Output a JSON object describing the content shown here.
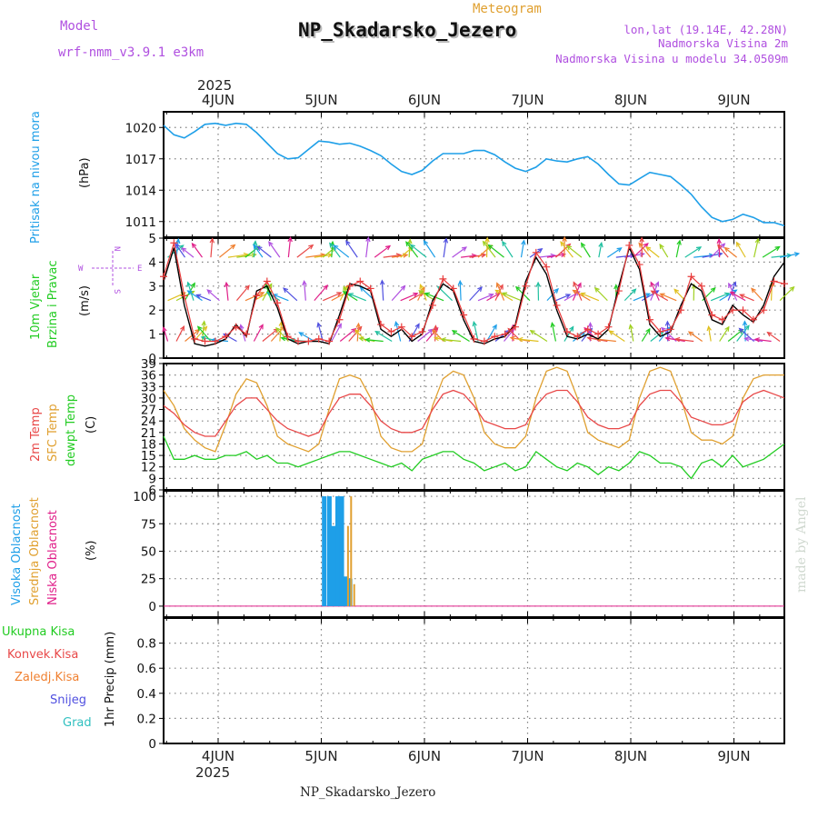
{
  "header": {
    "model_label": "Model",
    "model_name": "wrf-nmm_v3.9.1 e3km",
    "meteogram_label": "Meteogram",
    "station_title": "NP_Skadarsko_Jezero",
    "lonlat": "lon,lat (19.14E, 42.28N)",
    "elevation": "Nadmorska Visina 2m",
    "model_elevation": "Nadmorska Visina u modelu 34.0509m",
    "footer_title": "NP_Skadarsko_Jezero",
    "watermark": "made by Angel"
  },
  "time_axis": {
    "year": "2025",
    "days": [
      "4JUN",
      "5JUN",
      "6JUN",
      "7JUN",
      "8JUN",
      "9JUN"
    ],
    "x_range_days": [
      0,
      6.0
    ]
  },
  "colors": {
    "pressure": "#1e9fe8",
    "wind_speed": "#000000",
    "wind_gust": "#e83c3c",
    "temp2m": "#e84848",
    "sfc_temp": "#e0a030",
    "dewpt": "#22cc22",
    "high_cloud": "#1e9fe8",
    "mid_cloud": "#e0a030",
    "low_cloud": "#e0208a",
    "total_precip": "#22cc22",
    "conv_precip": "#e84848",
    "frozen_precip": "#f08030",
    "snow": "#5050e0",
    "graupel": "#30c0c0",
    "label_purple": "#b050e0",
    "frame": "#000000",
    "grid": "#808080"
  },
  "panel_labels": {
    "pressure": {
      "line1": "Pritisak na nivou mora",
      "unit": "(hPa)"
    },
    "wind": {
      "line1": "10m Vjetar",
      "line2": "Brzina i Pravac",
      "unit": "(m/s)",
      "compass_w": "W",
      "compass_e": "E",
      "compass_n": "N",
      "compass_s": "S"
    },
    "temp": {
      "line1": "2m Temp",
      "line2": "SFC Temp",
      "line3": "dewpt Temp",
      "unit": "(C)"
    },
    "cloud": {
      "line1": "Visoka Oblacnost",
      "line2": "Srednja Oblacnost",
      "line3": "Niska Oblacnost",
      "unit": "(%)"
    },
    "precip": {
      "line1": "Ukupna Kisa",
      "line2": "Konvek.Kisa",
      "line3": "Zaledj.Kisa",
      "line4": "Snijeg",
      "line5": "Grad",
      "unit": "1hr Precip (mm)"
    }
  },
  "chart_data": [
    {
      "id": "pressure",
      "type": "line",
      "ylabel": "(hPa)",
      "ylim": [
        1009.5,
        1021.5
      ],
      "yticks": [
        1011,
        1014,
        1017,
        1020
      ],
      "x_days": [
        0.0,
        0.1,
        0.2,
        0.3,
        0.4,
        0.5,
        0.6,
        0.7,
        0.8,
        0.9,
        1.0,
        1.1,
        1.2,
        1.3,
        1.4,
        1.5,
        1.6,
        1.7,
        1.8,
        1.9,
        2.0,
        2.1,
        2.2,
        2.3,
        2.4,
        2.5,
        2.6,
        2.7,
        2.8,
        2.9,
        3.0,
        3.1,
        3.2,
        3.3,
        3.4,
        3.5,
        3.6,
        3.7,
        3.8,
        3.9,
        4.0,
        4.1,
        4.2,
        4.3,
        4.4,
        4.5,
        4.6,
        4.7,
        4.8,
        4.9,
        5.0,
        5.1,
        5.2,
        5.3,
        5.4,
        5.5,
        5.6,
        5.7,
        5.8,
        5.9,
        6.0
      ],
      "series": [
        {
          "name": "MSLP",
          "values": [
            1020.2,
            1019.3,
            1019.0,
            1019.6,
            1020.3,
            1020.4,
            1020.2,
            1020.4,
            1020.3,
            1019.5,
            1018.5,
            1017.5,
            1017.0,
            1017.1,
            1017.9,
            1018.7,
            1018.6,
            1018.4,
            1018.5,
            1018.2,
            1017.8,
            1017.3,
            1016.5,
            1015.8,
            1015.5,
            1015.9,
            1016.8,
            1017.5,
            1017.5,
            1017.5,
            1017.8,
            1017.8,
            1017.4,
            1016.7,
            1016.1,
            1015.8,
            1016.2,
            1017.0,
            1016.8,
            1016.7,
            1017.0,
            1017.2,
            1016.5,
            1015.5,
            1014.6,
            1014.5,
            1015.1,
            1015.7,
            1015.5,
            1015.3,
            1014.5,
            1013.6,
            1012.4,
            1011.4,
            1011.0,
            1011.2,
            1011.7,
            1011.4,
            1010.9,
            1010.9,
            1010.6
          ]
        }
      ]
    },
    {
      "id": "wind",
      "type": "line",
      "ylabel": "(m/s)",
      "ylim": [
        0,
        5
      ],
      "yticks": [
        0,
        1,
        2,
        3,
        4,
        5
      ],
      "x_days": [
        0.0,
        0.1,
        0.2,
        0.3,
        0.4,
        0.5,
        0.6,
        0.7,
        0.8,
        0.9,
        1.0,
        1.1,
        1.2,
        1.3,
        1.4,
        1.5,
        1.6,
        1.7,
        1.8,
        1.9,
        2.0,
        2.1,
        2.2,
        2.3,
        2.4,
        2.5,
        2.6,
        2.7,
        2.8,
        2.9,
        3.0,
        3.1,
        3.2,
        3.3,
        3.4,
        3.5,
        3.6,
        3.7,
        3.8,
        3.9,
        4.0,
        4.1,
        4.2,
        4.3,
        4.4,
        4.5,
        4.6,
        4.7,
        4.8,
        4.9,
        5.0,
        5.1,
        5.2,
        5.3,
        5.4,
        5.5,
        5.6,
        5.7,
        5.8,
        5.9,
        6.0
      ],
      "series": [
        {
          "name": "Wind speed",
          "values": [
            3.2,
            4.6,
            2.2,
            0.6,
            0.5,
            0.6,
            0.8,
            1.4,
            0.9,
            2.8,
            3.0,
            2.1,
            0.8,
            0.6,
            0.7,
            0.7,
            0.6,
            1.8,
            3.1,
            3.0,
            2.8,
            1.2,
            0.9,
            1.2,
            0.7,
            1.0,
            2.4,
            3.1,
            2.8,
            1.6,
            0.7,
            0.6,
            0.8,
            0.9,
            1.4,
            3.2,
            4.2,
            3.5,
            2.0,
            0.9,
            0.8,
            1.0,
            0.8,
            1.2,
            3.0,
            4.6,
            3.7,
            1.4,
            0.9,
            1.1,
            2.2,
            3.1,
            2.8,
            1.6,
            1.4,
            2.2,
            1.8,
            1.5,
            2.2,
            3.4,
            4.0
          ]
        },
        {
          "name": "Wind gust",
          "values": [
            3.4,
            4.8,
            2.6,
            0.8,
            0.7,
            0.7,
            0.9,
            1.3,
            1.0,
            2.6,
            3.2,
            2.3,
            0.9,
            0.7,
            0.7,
            0.8,
            0.7,
            1.6,
            3.0,
            3.2,
            2.9,
            1.4,
            1.1,
            1.3,
            0.9,
            1.1,
            2.2,
            3.3,
            2.9,
            1.8,
            0.8,
            0.7,
            0.9,
            1.0,
            1.3,
            3.0,
            4.4,
            3.8,
            2.2,
            1.1,
            0.9,
            1.2,
            1.0,
            1.3,
            2.8,
            4.7,
            3.9,
            1.6,
            1.1,
            1.2,
            2.0,
            3.4,
            3.0,
            1.8,
            1.6,
            2.0,
            2.0,
            1.6,
            2.0,
            3.2,
            3.1
          ]
        }
      ],
      "arrow_rows_ms": [
        0.7,
        2.4,
        4.2
      ]
    },
    {
      "id": "temperature",
      "type": "line",
      "ylabel": "(C)",
      "ylim": [
        6,
        39
      ],
      "yticks": [
        6,
        9,
        12,
        15,
        18,
        21,
        24,
        27,
        30,
        33,
        36,
        39
      ],
      "x_days": [
        0.0,
        0.1,
        0.2,
        0.3,
        0.4,
        0.5,
        0.6,
        0.7,
        0.8,
        0.9,
        1.0,
        1.1,
        1.2,
        1.3,
        1.4,
        1.5,
        1.6,
        1.7,
        1.8,
        1.9,
        2.0,
        2.1,
        2.2,
        2.3,
        2.4,
        2.5,
        2.6,
        2.7,
        2.8,
        2.9,
        3.0,
        3.1,
        3.2,
        3.3,
        3.4,
        3.5,
        3.6,
        3.7,
        3.8,
        3.9,
        4.0,
        4.1,
        4.2,
        4.3,
        4.4,
        4.5,
        4.6,
        4.7,
        4.8,
        4.9,
        5.0,
        5.1,
        5.2,
        5.3,
        5.4,
        5.5,
        5.6,
        5.7,
        5.8,
        5.9,
        6.0
      ],
      "series": [
        {
          "name": "2m Temp",
          "values": [
            28,
            26,
            23,
            21,
            20,
            20,
            24,
            28,
            30,
            30,
            27,
            24,
            22,
            21,
            20,
            21,
            26,
            30,
            31,
            31,
            28,
            24,
            22,
            21,
            21,
            22,
            27,
            31,
            32,
            31,
            28,
            24,
            23,
            22,
            22,
            23,
            28,
            31,
            32,
            32,
            29,
            25,
            23,
            22,
            22,
            23,
            28,
            31,
            32,
            32,
            29,
            25,
            24,
            23,
            23,
            24,
            29,
            31,
            32,
            31,
            30
          ]
        },
        {
          "name": "SFC Temp",
          "values": [
            32,
            28,
            22,
            19,
            17,
            16,
            23,
            31,
            35,
            34,
            28,
            20,
            18,
            17,
            16,
            18,
            27,
            35,
            36,
            35,
            30,
            20,
            17,
            16,
            16,
            18,
            28,
            35,
            37,
            36,
            30,
            21,
            18,
            17,
            17,
            20,
            30,
            37,
            38,
            37,
            30,
            21,
            19,
            18,
            17,
            19,
            30,
            37,
            38,
            37,
            30,
            21,
            19,
            19,
            18,
            20,
            30,
            35,
            36,
            36,
            36
          ]
        },
        {
          "name": "Dewpt Temp",
          "values": [
            20,
            14,
            14,
            15,
            14,
            14,
            15,
            15,
            16,
            14,
            15,
            13,
            13,
            12,
            13,
            14,
            15,
            16,
            16,
            15,
            14,
            13,
            12,
            13,
            11,
            14,
            15,
            16,
            16,
            14,
            13,
            11,
            12,
            13,
            11,
            12,
            16,
            14,
            12,
            11,
            13,
            12,
            10,
            12,
            11,
            13,
            16,
            15,
            13,
            13,
            12,
            9,
            13,
            14,
            12,
            15,
            12,
            13,
            14,
            16,
            18
          ]
        }
      ]
    },
    {
      "id": "cloud",
      "type": "bar",
      "ylabel": "(%)",
      "ylim": [
        -10,
        105
      ],
      "yticks": [
        0,
        25,
        50,
        75,
        100
      ],
      "series": [
        {
          "name": "High cloud",
          "x_days": [
            1.28,
            1.33,
            1.37,
            1.41,
            1.45,
            1.49,
            1.53
          ],
          "values": [
            100,
            100,
            73,
            100,
            100,
            27,
            25
          ]
        },
        {
          "name": "Middle cloud",
          "x_days": [
            1.51,
            1.54,
            1.57
          ],
          "values": [
            73,
            100,
            20
          ]
        },
        {
          "name": "Low cloud",
          "x_days": [],
          "values": []
        }
      ]
    },
    {
      "id": "precip",
      "type": "bar",
      "ylabel": "1hr Precip (mm)",
      "ylim": [
        0,
        1.0
      ],
      "yticks": [
        0,
        0.2,
        0.4,
        0.6,
        0.8
      ],
      "series": [
        {
          "name": "Ukupna Kisa",
          "values": []
        },
        {
          "name": "Konvek.Kisa",
          "values": []
        },
        {
          "name": "Zaledj.Kisa",
          "values": []
        },
        {
          "name": "Snijeg",
          "values": []
        },
        {
          "name": "Grad",
          "values": []
        }
      ]
    }
  ]
}
